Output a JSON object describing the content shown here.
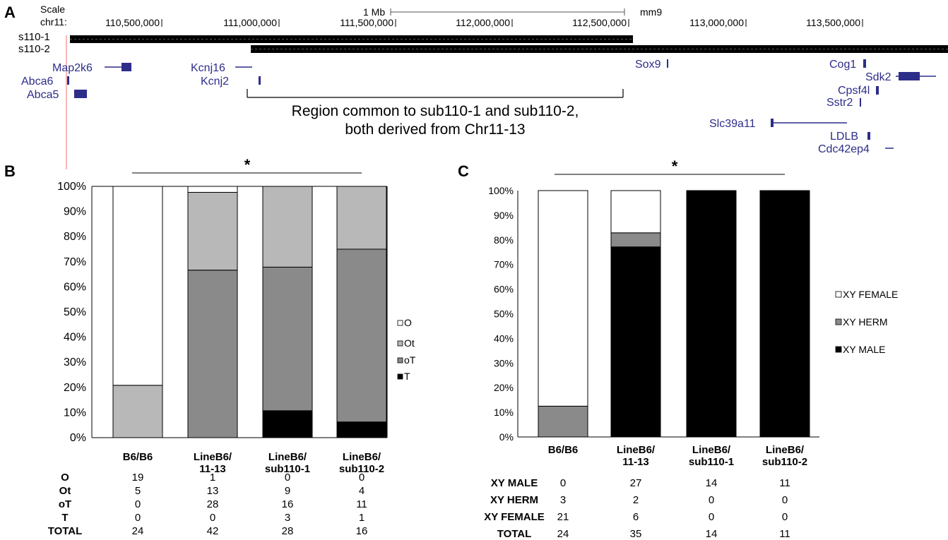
{
  "panel_a": {
    "letter": "A",
    "scale_label": "Scale",
    "chrom_label": "chr11:",
    "scale_text": "1 Mb",
    "assembly": "mm9",
    "ticks": [
      "110,500,000",
      "111,000,000",
      "111,500,000",
      "112,000,000",
      "112,500,000",
      "113,000,000",
      "113,500,000"
    ],
    "tracks": [
      "s110-1",
      "s110-2"
    ],
    "genes": [
      "Map2k6",
      "Abca6",
      "Abca5",
      "Kcnj16",
      "Kcnj2",
      "Sox9",
      "Cog1",
      "Sdk2",
      "Cpsf4l",
      "Sstr2",
      "Slc39a11",
      "LDLB",
      "Cdc42ep4"
    ],
    "region_line1": "Region common to sub110-1 and sub110-2,",
    "region_line2": "both derived from Chr11-13"
  },
  "panel_b": {
    "letter": "B",
    "significance": "*",
    "legend": [
      {
        "label": "O",
        "color": "#ffffff"
      },
      {
        "label": "Ot",
        "color": "#b8b8b8"
      },
      {
        "label": "oT",
        "color": "#8a8a8a"
      },
      {
        "label": "T",
        "color": "#000000"
      }
    ],
    "table": {
      "rows": [
        {
          "label": "O",
          "values": [
            "19",
            "1",
            "0",
            "0"
          ]
        },
        {
          "label": "Ot",
          "values": [
            "5",
            "13",
            "9",
            "4"
          ]
        },
        {
          "label": "oT",
          "values": [
            "0",
            "28",
            "16",
            "11"
          ]
        },
        {
          "label": "T",
          "values": [
            "0",
            "0",
            "3",
            "1"
          ]
        },
        {
          "label": "TOTAL",
          "values": [
            "24",
            "42",
            "28",
            "16"
          ]
        }
      ]
    }
  },
  "panel_c": {
    "letter": "C",
    "significance": "*",
    "legend": [
      {
        "label": "XY FEMALE",
        "color": "#ffffff"
      },
      {
        "label": "XY HERM",
        "color": "#8a8a8a"
      },
      {
        "label": "XY MALE",
        "color": "#000000"
      }
    ],
    "table": {
      "rows": [
        {
          "label": "XY MALE",
          "values": [
            "0",
            "27",
            "14",
            "11"
          ]
        },
        {
          "label": "XY HERM",
          "values": [
            "3",
            "2",
            "0",
            "0"
          ]
        },
        {
          "label": "XY FEMALE",
          "values": [
            "21",
            "6",
            "0",
            "0"
          ]
        },
        {
          "label": "TOTAL",
          "values": [
            "24",
            "35",
            "14",
            "11"
          ]
        }
      ]
    }
  },
  "chart_data": [
    {
      "type": "bar",
      "stacked": true,
      "percent": true,
      "categories": [
        [
          "B6/B6"
        ],
        [
          "LineB6/",
          "11-13"
        ],
        [
          "LineB6/",
          "sub110-1"
        ],
        [
          "LineB6/",
          "sub110-2"
        ]
      ],
      "yticks": [
        "0%",
        "10%",
        "20%",
        "30%",
        "40%",
        "50%",
        "60%",
        "70%",
        "80%",
        "90%",
        "100%"
      ],
      "ylim": [
        0,
        100
      ],
      "series": [
        {
          "name": "T",
          "color": "#000000",
          "values": [
            0,
            0,
            3,
            1
          ]
        },
        {
          "name": "oT",
          "color": "#8a8a8a",
          "values": [
            0,
            28,
            16,
            11
          ]
        },
        {
          "name": "Ot",
          "color": "#b8b8b8",
          "values": [
            5,
            13,
            9,
            4
          ]
        },
        {
          "name": "O",
          "color": "#ffffff",
          "values": [
            19,
            1,
            0,
            0
          ]
        }
      ],
      "legend_position": "right"
    },
    {
      "type": "bar",
      "stacked": true,
      "percent": true,
      "categories": [
        [
          "B6/B6"
        ],
        [
          "LineB6/",
          "11-13"
        ],
        [
          "LineB6/",
          "sub110-1"
        ],
        [
          "LineB6/",
          "sub110-2"
        ]
      ],
      "yticks": [
        "0%",
        "10%",
        "20%",
        "30%",
        "40%",
        "50%",
        "60%",
        "70%",
        "80%",
        "90%",
        "100%"
      ],
      "ylim": [
        0,
        100
      ],
      "series": [
        {
          "name": "XY MALE",
          "color": "#000000",
          "values": [
            0,
            27,
            14,
            11
          ]
        },
        {
          "name": "XY HERM",
          "color": "#8a8a8a",
          "values": [
            3,
            2,
            0,
            0
          ]
        },
        {
          "name": "XY FEMALE",
          "color": "#ffffff",
          "values": [
            21,
            6,
            0,
            0
          ]
        }
      ],
      "legend_position": "right"
    }
  ]
}
